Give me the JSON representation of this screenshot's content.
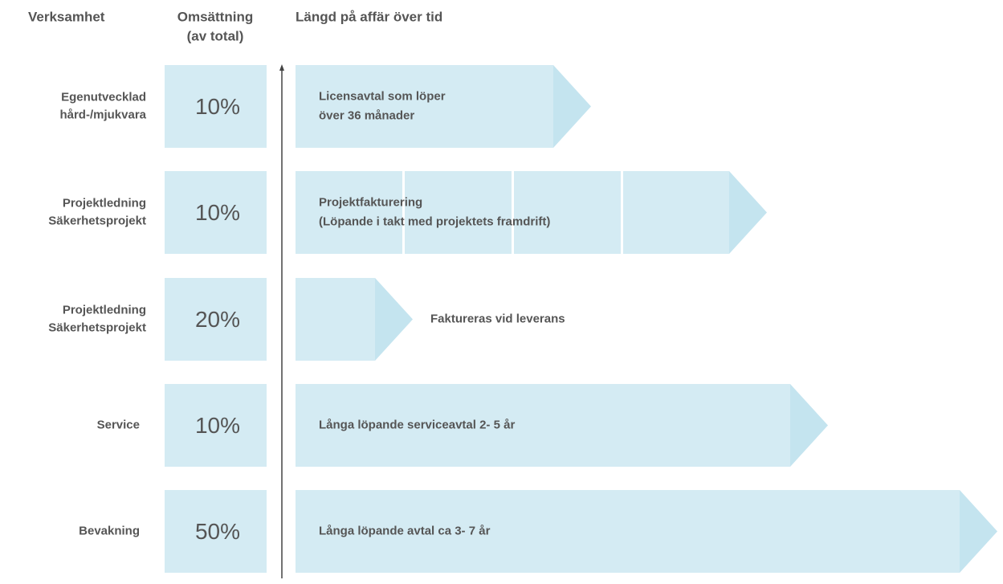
{
  "header": {
    "business": "Verksamhet",
    "revenue": [
      "Omsättning",
      "(av total)"
    ],
    "duration": "Längd på affär över tid"
  },
  "rows": [
    {
      "label": [
        "Egenutvecklad",
        "hård-/mjukvara"
      ],
      "share": "10%",
      "description": [
        "Licensavtal som löper",
        "över 36 månader"
      ]
    },
    {
      "label": [
        "Projektledning",
        "Säkerhetsprojekt"
      ],
      "share": "10%",
      "description": [
        "Projektfakturering",
        "(Löpande i takt med projektets framdrift)"
      ]
    },
    {
      "label": [
        "Projektledning",
        "Säkerhetsprojekt"
      ],
      "share": "20%",
      "description": [
        "Faktureras vid leverans"
      ]
    },
    {
      "label": [
        "Service"
      ],
      "share": "10%",
      "description": [
        "Långa löpande serviceavtal 2- 5 år"
      ]
    },
    {
      "label": [
        "Bevakning"
      ],
      "share": "50%",
      "description": [
        "Långa löpande avtal ca 3- 7 år"
      ]
    }
  ]
}
